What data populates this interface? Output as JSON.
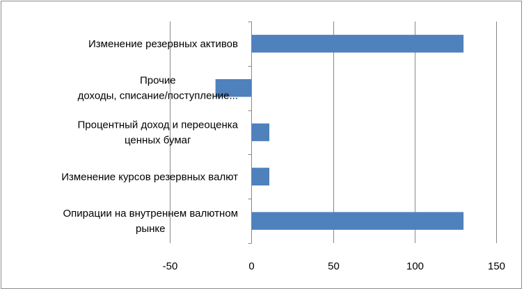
{
  "chart_data": {
    "type": "bar",
    "orientation": "horizontal",
    "categories": [
      [
        "Изменение резервных активов"
      ],
      [
        "Прочие",
        "доходы, списание/поступление..."
      ],
      [
        "Процентный доход и переоценка",
        "ценных бумаг"
      ],
      [
        "Изменение курсов резервных валют"
      ],
      [
        "Опирации на внутреннем валютном",
        "рынке"
      ]
    ],
    "values": [
      130,
      -22,
      11,
      11,
      130
    ],
    "xlim": [
      -50,
      150
    ],
    "xticks": [
      "-50",
      "0",
      "50",
      "100",
      "150"
    ],
    "xtick_values": [
      -50,
      0,
      50,
      100,
      150
    ],
    "grid": "vertical",
    "bar_color": "#4f81bd",
    "grid_color": "#868686",
    "title": "",
    "xlabel": "",
    "ylabel": ""
  }
}
